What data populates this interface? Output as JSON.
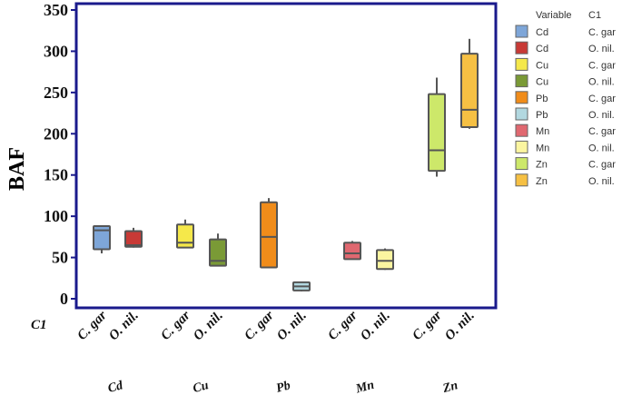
{
  "chart_data": {
    "type": "boxplot",
    "ylabel": "BAF",
    "yticks": [
      0,
      50,
      100,
      150,
      200,
      250,
      300,
      350
    ],
    "ylim": [
      -10,
      355
    ],
    "row_label": "C1",
    "groups": [
      "Cd",
      "Cu",
      "Pb",
      "Mn",
      "Zn"
    ],
    "subcategories": [
      "C. gar",
      "O. nil."
    ],
    "boxes": [
      {
        "variable": "Cd",
        "c1": "C. gar",
        "min": 55,
        "q1": 60,
        "median": 83,
        "q3": 88,
        "max": 88,
        "color": "#7ea6d8"
      },
      {
        "variable": "Cd",
        "c1": "O. nil.",
        "min": 62,
        "q1": 63,
        "median": 65,
        "q3": 82,
        "max": 86,
        "color": "#c83a36"
      },
      {
        "variable": "Cu",
        "c1": "C. gar",
        "min": 62,
        "q1": 62,
        "median": 68,
        "q3": 90,
        "max": 96,
        "color": "#f5e84a"
      },
      {
        "variable": "Cu",
        "c1": "O. nil.",
        "min": 40,
        "q1": 40,
        "median": 46,
        "q3": 72,
        "max": 79,
        "color": "#7a9a36"
      },
      {
        "variable": "Pb",
        "c1": "C. gar",
        "min": 37,
        "q1": 38,
        "median": 75,
        "q3": 117,
        "max": 122,
        "color": "#f08c1a"
      },
      {
        "variable": "Pb",
        "c1": "O. nil.",
        "min": 9,
        "q1": 10,
        "median": 15,
        "q3": 20,
        "max": 20,
        "color": "#b2d8e0"
      },
      {
        "variable": "Mn",
        "c1": "C. gar",
        "min": 48,
        "q1": 48,
        "median": 55,
        "q3": 68,
        "max": 70,
        "color": "#e06870"
      },
      {
        "variable": "Mn",
        "c1": "O. nil.",
        "min": 35,
        "q1": 36,
        "median": 46,
        "q3": 59,
        "max": 61,
        "color": "#fbf5a0"
      },
      {
        "variable": "Zn",
        "c1": "C. gar",
        "min": 148,
        "q1": 155,
        "median": 180,
        "q3": 248,
        "max": 268,
        "color": "#cde86a"
      },
      {
        "variable": "Zn",
        "c1": "O. nil.",
        "min": 206,
        "q1": 208,
        "median": 229,
        "q3": 297,
        "max": 315,
        "color": "#f6c043"
      }
    ],
    "legend": {
      "headers": [
        "Variable",
        "C1"
      ],
      "entries": [
        {
          "variable": "Cd",
          "c1": "C. gar",
          "color": "#7ea6d8"
        },
        {
          "variable": "Cd",
          "c1": "O. nil.",
          "color": "#c83a36"
        },
        {
          "variable": "Cu",
          "c1": "C. gar",
          "color": "#f5e84a"
        },
        {
          "variable": "Cu",
          "c1": "O. nil.",
          "color": "#7a9a36"
        },
        {
          "variable": "Pb",
          "c1": "C. gar",
          "color": "#f08c1a"
        },
        {
          "variable": "Pb",
          "c1": "O. nil.",
          "color": "#b2d8e0"
        },
        {
          "variable": "Mn",
          "c1": "C. gar",
          "color": "#e06870"
        },
        {
          "variable": "Mn",
          "c1": "O. nil.",
          "color": "#fbf5a0"
        },
        {
          "variable": "Zn",
          "c1": "C. gar",
          "color": "#cde86a"
        },
        {
          "variable": "Zn",
          "c1": "O. nil.",
          "color": "#f6c043"
        }
      ]
    },
    "frame_color": "#1a1a8c",
    "grid": false,
    "legend_position": "right"
  }
}
